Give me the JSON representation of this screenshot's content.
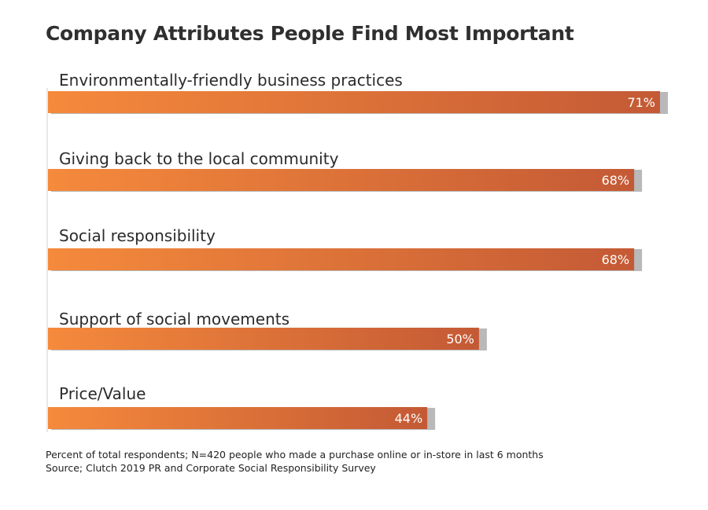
{
  "chart_data": {
    "type": "bar",
    "orientation": "horizontal",
    "title": "Company Attributes People Find Most Important",
    "categories": [
      "Environmentally-friendly business practices",
      "Giving back to the local community",
      "Social responsibility",
      "Support of social movements",
      "Price/Value"
    ],
    "values": [
      71,
      68,
      68,
      50,
      44
    ],
    "value_labels": [
      "71%",
      "68%",
      "68%",
      "50%",
      "44%"
    ],
    "unit": "%",
    "xlim": [
      0,
      71
    ],
    "grid": false,
    "colors": {
      "bar_start": "#f58a3c",
      "bar_end": "#c45a35",
      "bar_shadow": "#b9b9b9",
      "label": "#ffffff"
    }
  },
  "footnote": {
    "line1": "Percent of total respondents; N=420 people who made a purchase online or in-store in last 6 months",
    "line2": "Source; Clutch 2019 PR and Corporate Social Responsibility Survey"
  }
}
